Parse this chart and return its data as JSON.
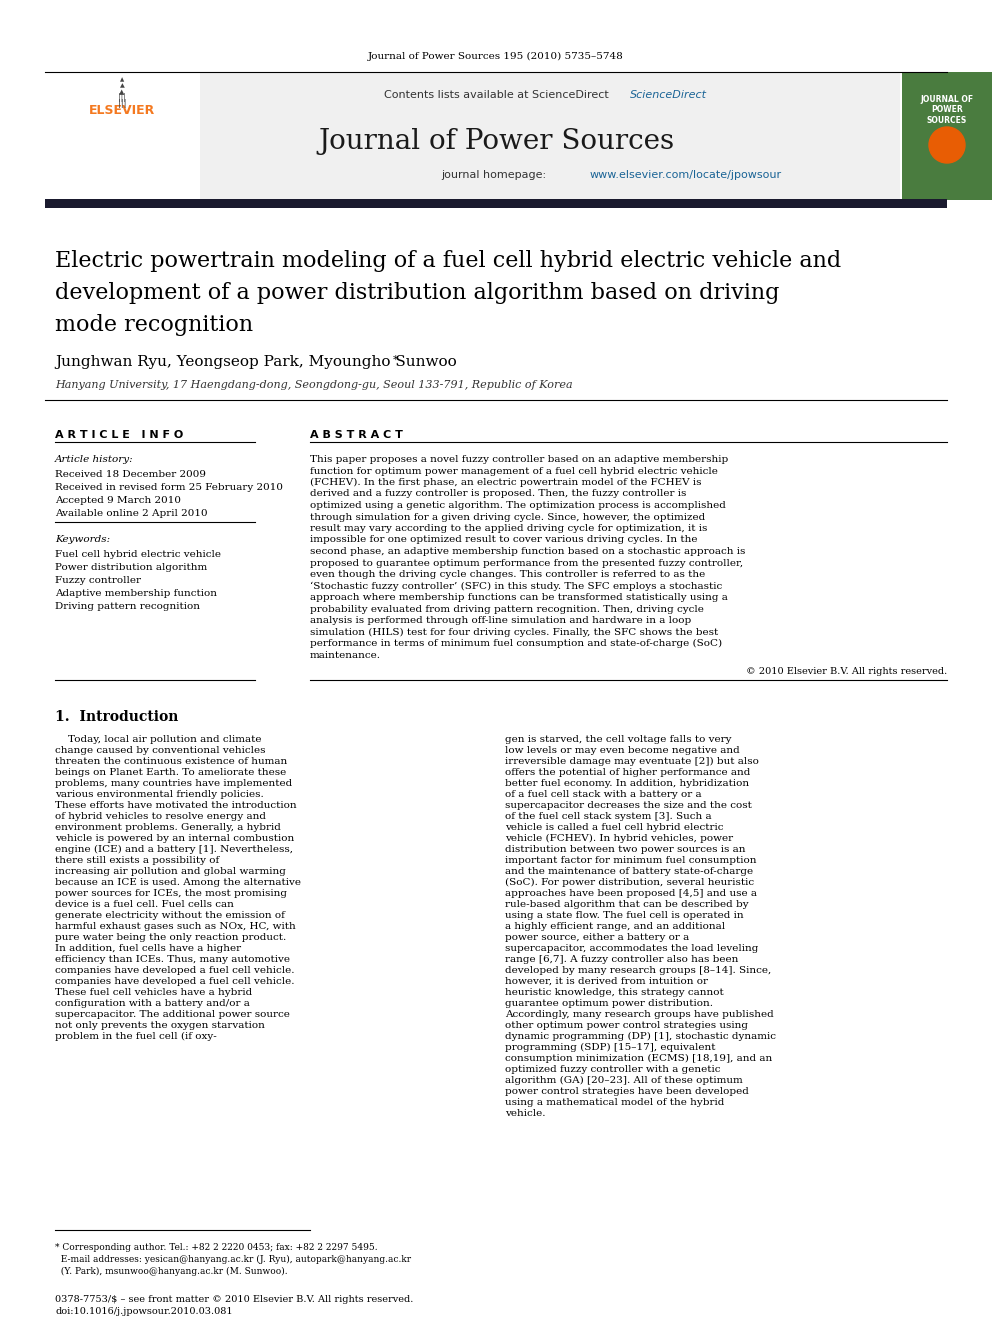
{
  "journal_ref": "Journal of Power Sources 195 (2010) 5735–5748",
  "contents_line": "Contents lists available at ScienceDirect",
  "journal_name": "Journal of Power Sources",
  "homepage_line": "journal homepage: www.elsevier.com/locate/jpowsour",
  "title": "Electric powertrain modeling of a fuel cell hybrid electric vehicle and\ndevelopment of a power distribution algorithm based on driving\nmode recognition",
  "authors": "Junghwan Ryu, Yeongseop Park, Myoungho Sunwoo",
  "affiliation": "Hanyang University, 17 Haengdang-dong, Seongdong-gu, Seoul 133-791, Republic of Korea",
  "article_info_header": "A R T I C L E   I N F O",
  "abstract_header": "A B S T R A C T",
  "article_history_label": "Article history:",
  "received1": "Received 18 December 2009",
  "received2": "Received in revised form 25 February 2010",
  "accepted": "Accepted 9 March 2010",
  "available": "Available online 2 April 2010",
  "keywords_label": "Keywords:",
  "keywords": [
    "Fuel cell hybrid electric vehicle",
    "Power distribution algorithm",
    "Fuzzy controller",
    "Adaptive membership function",
    "Driving pattern recognition"
  ],
  "abstract_text": "This paper proposes a novel fuzzy controller based on an adaptive membership function for optimum power management of a fuel cell hybrid electric vehicle (FCHEV). In the first phase, an electric powertrain model of the FCHEV is derived and a fuzzy controller is proposed. Then, the fuzzy controller is optimized using a genetic algorithm. The optimization process is accomplished through simulation for a given driving cycle. Since, however, the optimized result may vary according to the applied driving cycle for optimization, it is impossible for one optimized result to cover various driving cycles. In the second phase, an adaptive membership function based on a stochastic approach is proposed to guarantee optimum performance from the presented fuzzy controller, even though the driving cycle changes. This controller is referred to as the ‘Stochastic fuzzy controller’ (SFC) in this study. The SFC employs a stochastic approach where membership functions can be transformed statistically using a probability evaluated from driving pattern recognition. Then, driving cycle analysis is performed through off-line simulation and hardware in a loop simulation (HILS) test for four driving cycles. Finally, the SFC shows the best performance in terms of minimum fuel consumption and state-of-charge (SoC) maintenance.",
  "copyright": "© 2010 Elsevier B.V. All rights reserved.",
  "intro_header": "1.  Introduction",
  "intro_col1": "Today, local air pollution and climate change caused by conventional vehicles threaten the continuous existence of human beings on Planet Earth. To ameliorate these problems, many countries have implemented various environmental friendly policies. These efforts have motivated the introduction of hybrid vehicles to resolve energy and environment problems. Generally, a hybrid vehicle is powered by an internal combustion engine (ICE) and a battery [1]. Nevertheless, there still exists a possibility of increasing air pollution and global warming because an ICE is used. Among the alternative power sources for ICEs, the most promising device is a fuel cell. Fuel cells can generate electricity without the emission of harmful exhaust gases such as NOx, HC, with pure water being the only reaction product. In addition, fuel cells have a higher efficiency than ICEs. Thus, many automotive companies have developed a fuel cell vehicle.",
  "intro_col1b": "These fuel cell vehicles have a hybrid configuration with a battery and/or a supercapacitor. The additional power source not only prevents the oxygen starvation problem in the fuel cell (if oxy-",
  "intro_col2": "gen is starved, the cell voltage falls to very low levels or may even become negative and irreversible damage may eventuate [2]) but also offers the potential of higher performance and better fuel economy. In addition, hybridization of a fuel cell stack with a battery or a supercapacitor decreases the size and the cost of the fuel cell stack system [3]. Such a vehicle is called a fuel cell hybrid electric vehicle (FCHEV).",
  "intro_col2b": "In hybrid vehicles, power distribution between two power sources is an important factor for minimum fuel consumption and the maintenance of battery state-of-charge (SoC). For power distribution, several heuristic approaches have been proposed [4,5] and use a rule-based algorithm that can be described by using a state flow. The fuel cell is operated in a highly efficient range, and an additional power source, either a battery or a supercapacitor, accommodates the load leveling range [6,7]. A fuzzy controller also has been developed by many research groups [8–14]. Since, however, it is derived from intuition or heuristic knowledge, this strategy cannot guarantee optimum power distribution. Accordingly, many research groups have published other optimum power control strategies using dynamic programming (DP) [1], stochastic dynamic programming (SDP) [15–17], equivalent consumption minimization (ECMS) [18,19], and an optimized fuzzy controller with a genetic algorithm (GA) [20–23]. All of these optimum power control strategies have been developed using a mathematical model of the hybrid vehicle.",
  "footnote": "* Corresponding author. Tel.: +82 2 2220 0453; fax: +82 2 2297 5495.\n  E-mail addresses: yesican@hanyang.ac.kr (J. Ryu), autopark@hanyang.ac.kr\n  (Y. Park), msunwoo@hanyang.ac.kr (M. Sunwoo).",
  "footer": "0378-7753/$ – see front matter © 2010 Elsevier B.V. All rights reserved.\ndoi:10.1016/j.jpowsour.2010.03.081",
  "bg_header": "#f0f0f0",
  "color_sciencedirect": "#1a6496",
  "color_homepage": "#1a6496",
  "color_elsevier_orange": "#f47920",
  "color_dark_bar": "#1a1a2e",
  "color_title": "#000000",
  "color_authors": "#000000",
  "color_section": "#000000"
}
